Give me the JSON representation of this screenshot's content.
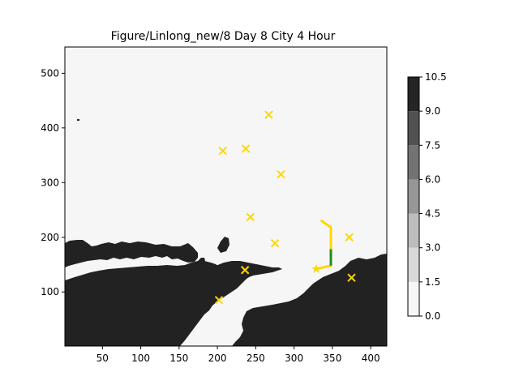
{
  "chart_data": {
    "type": "heatmap",
    "title": "Figure/Linlong_new/8 Day 8 City 4 Hour",
    "xlabel": "",
    "ylabel": "",
    "xlim": [
      1,
      421
    ],
    "ylim": [
      1,
      548
    ],
    "x_ticks": [
      50,
      100,
      150,
      200,
      250,
      300,
      350,
      400
    ],
    "y_ticks": [
      100,
      200,
      300,
      400,
      500
    ],
    "grid": false,
    "colorbar": {
      "levels": [
        0.0,
        1.5,
        3.0,
        4.5,
        6.0,
        7.5,
        9.0,
        10.5
      ],
      "tick_labels": [
        "0.0",
        "1.5",
        "3.0",
        "4.5",
        "6.0",
        "7.5",
        "9.0",
        "10.5"
      ],
      "colors": [
        "#f6f6f6",
        "#d9d9d9",
        "#bdbdbd",
        "#969696",
        "#737373",
        "#525252",
        "#252525"
      ]
    },
    "background_value_color": "#f6f6f6",
    "land_color": "#222222",
    "cities": {
      "marker": "x",
      "color": "#ffd700",
      "points": [
        {
          "x": 267,
          "y": 424
        },
        {
          "x": 237,
          "y": 362
        },
        {
          "x": 207,
          "y": 358
        },
        {
          "x": 283,
          "y": 315
        },
        {
          "x": 243,
          "y": 237
        },
        {
          "x": 275,
          "y": 189
        },
        {
          "x": 372,
          "y": 200
        },
        {
          "x": 236,
          "y": 140
        },
        {
          "x": 375,
          "y": 126
        },
        {
          "x": 202,
          "y": 85
        }
      ]
    },
    "depot": {
      "marker": "star",
      "color": "#ffd700",
      "x": 329,
      "y": 142
    },
    "route_segments": [
      {
        "color": "#ffd700",
        "points": [
          [
            329,
            142
          ],
          [
            348,
            148
          ]
        ]
      },
      {
        "color": "#228b22",
        "points": [
          [
            348,
            150
          ],
          [
            348,
            180
          ]
        ]
      },
      {
        "color": "#ffd700",
        "points": [
          [
            348,
            180
          ],
          [
            348,
            218
          ],
          [
            336,
            230
          ]
        ]
      }
    ]
  }
}
